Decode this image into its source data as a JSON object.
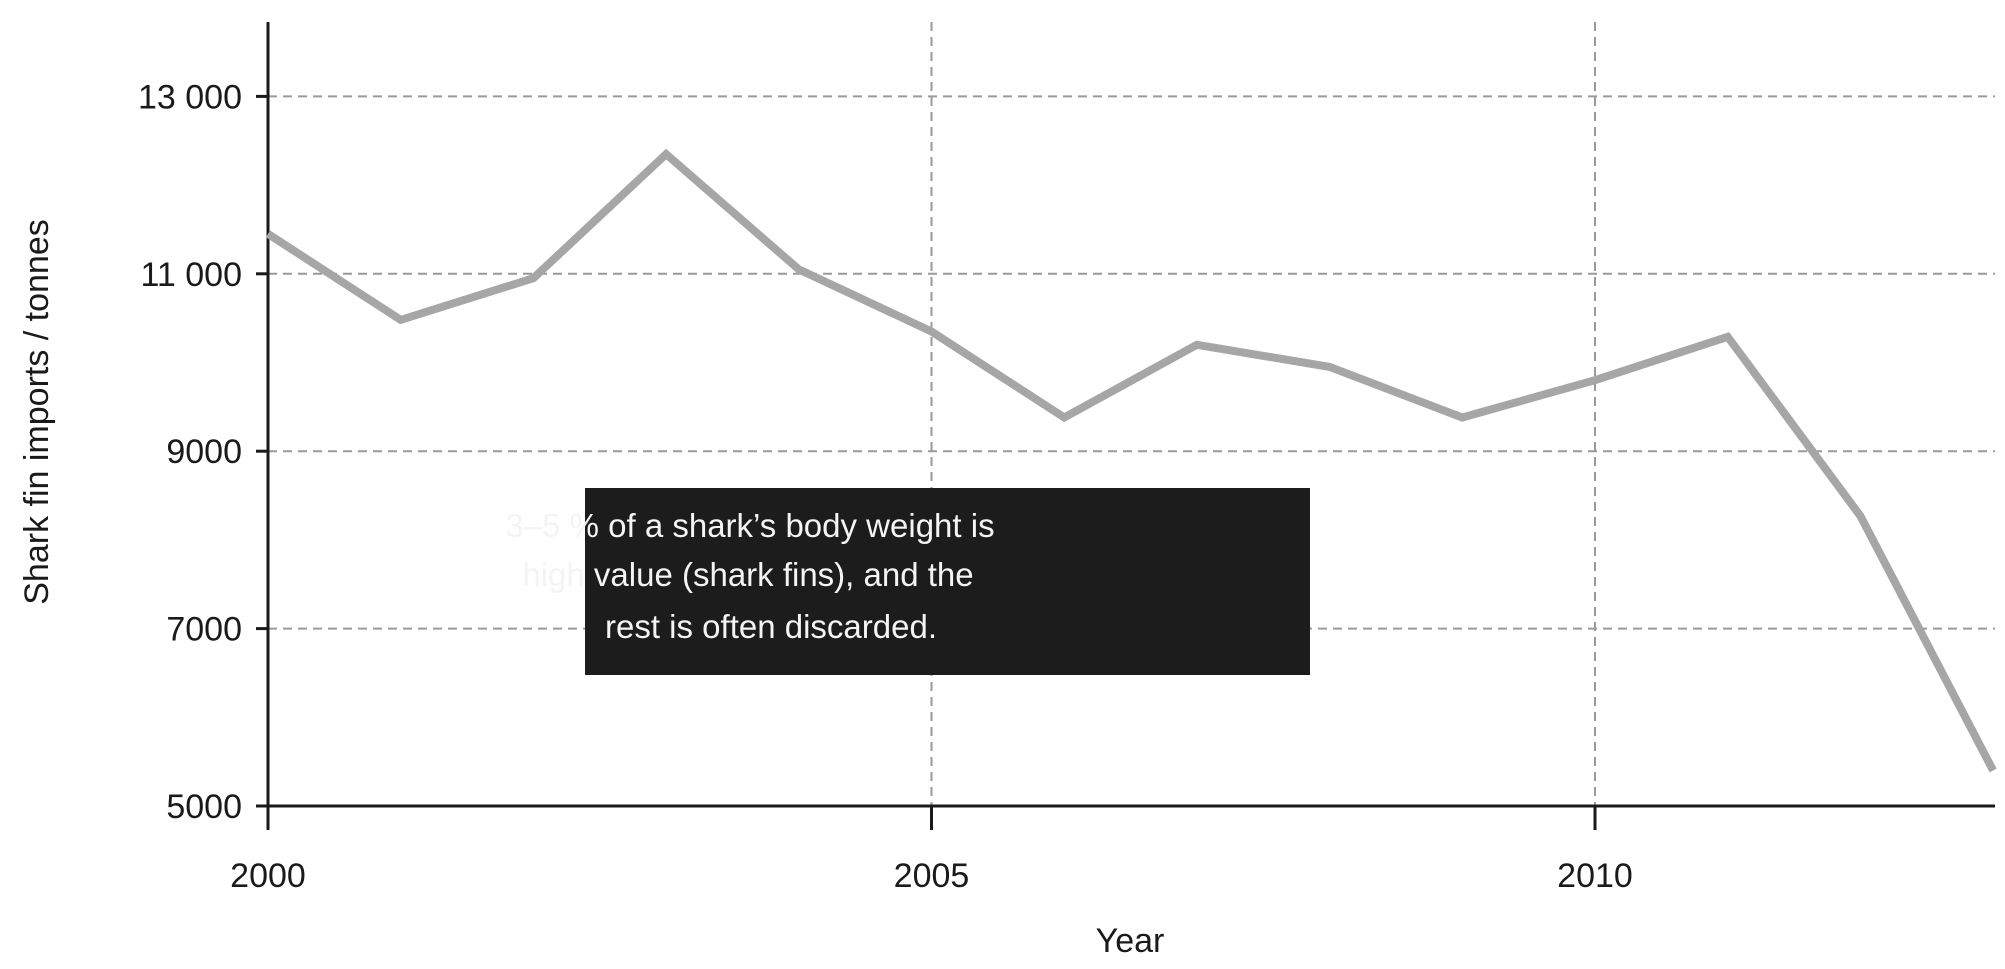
{
  "chart_data": {
    "type": "line",
    "xlabel": "Year",
    "ylabel": "Shark fin imports / tonnes",
    "xlim": [
      2000,
      2013
    ],
    "ylim": [
      5000,
      13800
    ],
    "x_ticks": [
      2000,
      2005,
      2010
    ],
    "x_tick_labels": [
      "2000",
      "2005",
      "2010"
    ],
    "y_ticks": [
      5000,
      7000,
      9000,
      11000,
      13000
    ],
    "y_tick_labels": [
      "5000",
      "7000",
      "9000",
      "11 000",
      "13 000"
    ],
    "grid": true,
    "series": [
      {
        "color": "#a6a6a6",
        "x": [
          2000,
          2001,
          2002,
          2003,
          2004,
          2005,
          2006,
          2007,
          2008,
          2009,
          2010,
          2011,
          2012,
          2013
        ],
        "y": [
          11450,
          10480,
          10950,
          12350,
          11050,
          10350,
          9380,
          10200,
          9950,
          9380,
          9800,
          10290,
          8270,
          5400
        ]
      }
    ],
    "annotation": {
      "lines": [
        "3–5 % of a shark’s body weight is",
        "high value (shark fins), and the",
        "rest is often discarded."
      ],
      "background": "#1c1c1c"
    }
  }
}
